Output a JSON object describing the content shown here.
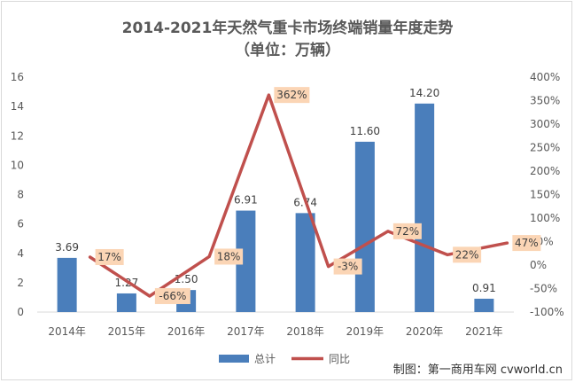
{
  "chart_data": {
    "type": "bar+line",
    "title": "2014-2021年天然气重卡市场终端销量年度走势",
    "subtitle": "（单位：万辆）",
    "categories": [
      "2014年",
      "2015年",
      "2016年",
      "2017年",
      "2018年",
      "2019年",
      "2020年",
      "2021年"
    ],
    "series": [
      {
        "name": "总计",
        "type": "bar",
        "axis": "left",
        "color": "#4a7ebb",
        "values": [
          3.69,
          1.27,
          1.5,
          6.91,
          6.74,
          11.6,
          14.2,
          0.91
        ],
        "labels": [
          "3.69",
          "1.27",
          "1.50",
          "6.91",
          "6.74",
          "11.60",
          "14.20",
          "0.91"
        ]
      },
      {
        "name": "同比",
        "type": "line",
        "axis": "right",
        "color": "#c0504d",
        "values": [
          17,
          -66,
          18,
          362,
          -3,
          72,
          22,
          47
        ],
        "labels": [
          "17%",
          "-66%",
          "18%",
          "362%",
          "-3%",
          "72%",
          "22%",
          "47%"
        ]
      }
    ],
    "y_left": {
      "min": 0,
      "max": 16,
      "ticks": [
        0,
        2,
        4,
        6,
        8,
        10,
        12,
        14,
        16
      ]
    },
    "y_right": {
      "min": -100,
      "max": 400,
      "ticks": [
        -100,
        -50,
        0,
        50,
        100,
        150,
        200,
        250,
        300,
        350,
        400
      ],
      "tick_labels": [
        "-100%",
        "-50%",
        "0%",
        "50%",
        "100%",
        "150%",
        "200%",
        "250%",
        "300%",
        "350%",
        "400%"
      ]
    },
    "grid": false,
    "legend": "bottom",
    "label_box_color": "#fbd5b5"
  },
  "credit": "制图：第一商用车网 cvworld.cn"
}
